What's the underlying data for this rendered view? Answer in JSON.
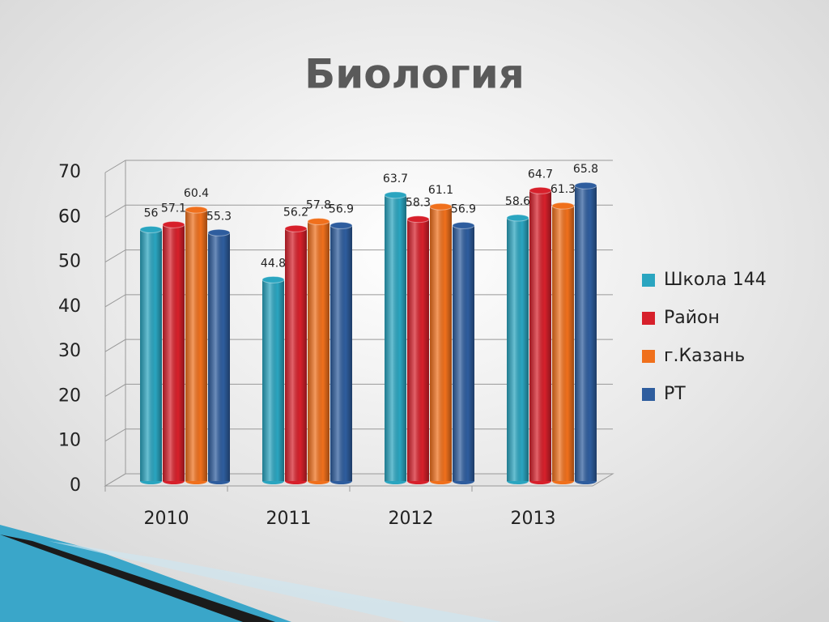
{
  "chart_data": {
    "type": "bar3d",
    "title": "Биология",
    "categories": [
      "2010",
      "2011",
      "2012",
      "2013"
    ],
    "series": [
      {
        "name": "Школа 144",
        "color": "#2aa5c0",
        "values": [
          56,
          44.8,
          63.7,
          58.6
        ]
      },
      {
        "name": "Район",
        "color": "#d7202b",
        "values": [
          57.1,
          56.2,
          58.3,
          64.7
        ]
      },
      {
        "name": "г.Казань",
        "color": "#f0701c",
        "values": [
          60.4,
          57.8,
          61.1,
          61.3
        ]
      },
      {
        "name": "РТ",
        "color": "#2e5d9e",
        "values": [
          55.3,
          56.9,
          56.9,
          65.8
        ]
      }
    ],
    "ylim": [
      0,
      70
    ],
    "yticks": [
      0,
      10,
      20,
      30,
      40,
      50,
      60,
      70
    ],
    "grid": true,
    "legend": "right"
  }
}
